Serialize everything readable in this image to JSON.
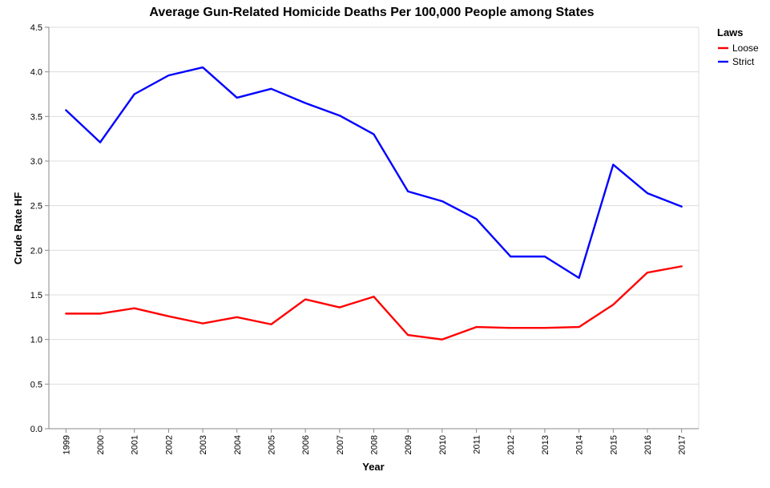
{
  "chart_data": {
    "type": "line",
    "title": "Average Gun-Related Homicide Deaths Per 100,000 People among States",
    "xlabel": "Year",
    "ylabel": "Crude Rate HF",
    "ylim": [
      0,
      4.5
    ],
    "yticks": [
      "0.0",
      "0.5",
      "1.0",
      "1.5",
      "2.0",
      "2.5",
      "3.0",
      "3.5",
      "4.0",
      "4.5"
    ],
    "x": [
      "1999",
      "2000",
      "2001",
      "2002",
      "2003",
      "2004",
      "2005",
      "2006",
      "2007",
      "2008",
      "2009",
      "2010",
      "2011",
      "2012",
      "2013",
      "2014",
      "2015",
      "2016",
      "2017"
    ],
    "grid": true,
    "legend": {
      "title": "Laws",
      "placement": "top-right"
    },
    "series": [
      {
        "name": "Loose",
        "color": "#ff0000",
        "values": [
          1.29,
          1.29,
          1.35,
          1.26,
          1.18,
          1.25,
          1.17,
          1.45,
          1.36,
          1.48,
          1.05,
          1.0,
          1.14,
          1.13,
          1.13,
          1.14,
          1.39,
          1.75,
          1.82
        ]
      },
      {
        "name": "Strict",
        "color": "#0000ff",
        "values": [
          3.57,
          3.21,
          3.75,
          3.96,
          4.05,
          3.71,
          3.81,
          3.65,
          3.51,
          3.3,
          2.66,
          2.55,
          2.35,
          1.93,
          1.93,
          1.69,
          2.96,
          2.64,
          2.49
        ]
      }
    ]
  }
}
